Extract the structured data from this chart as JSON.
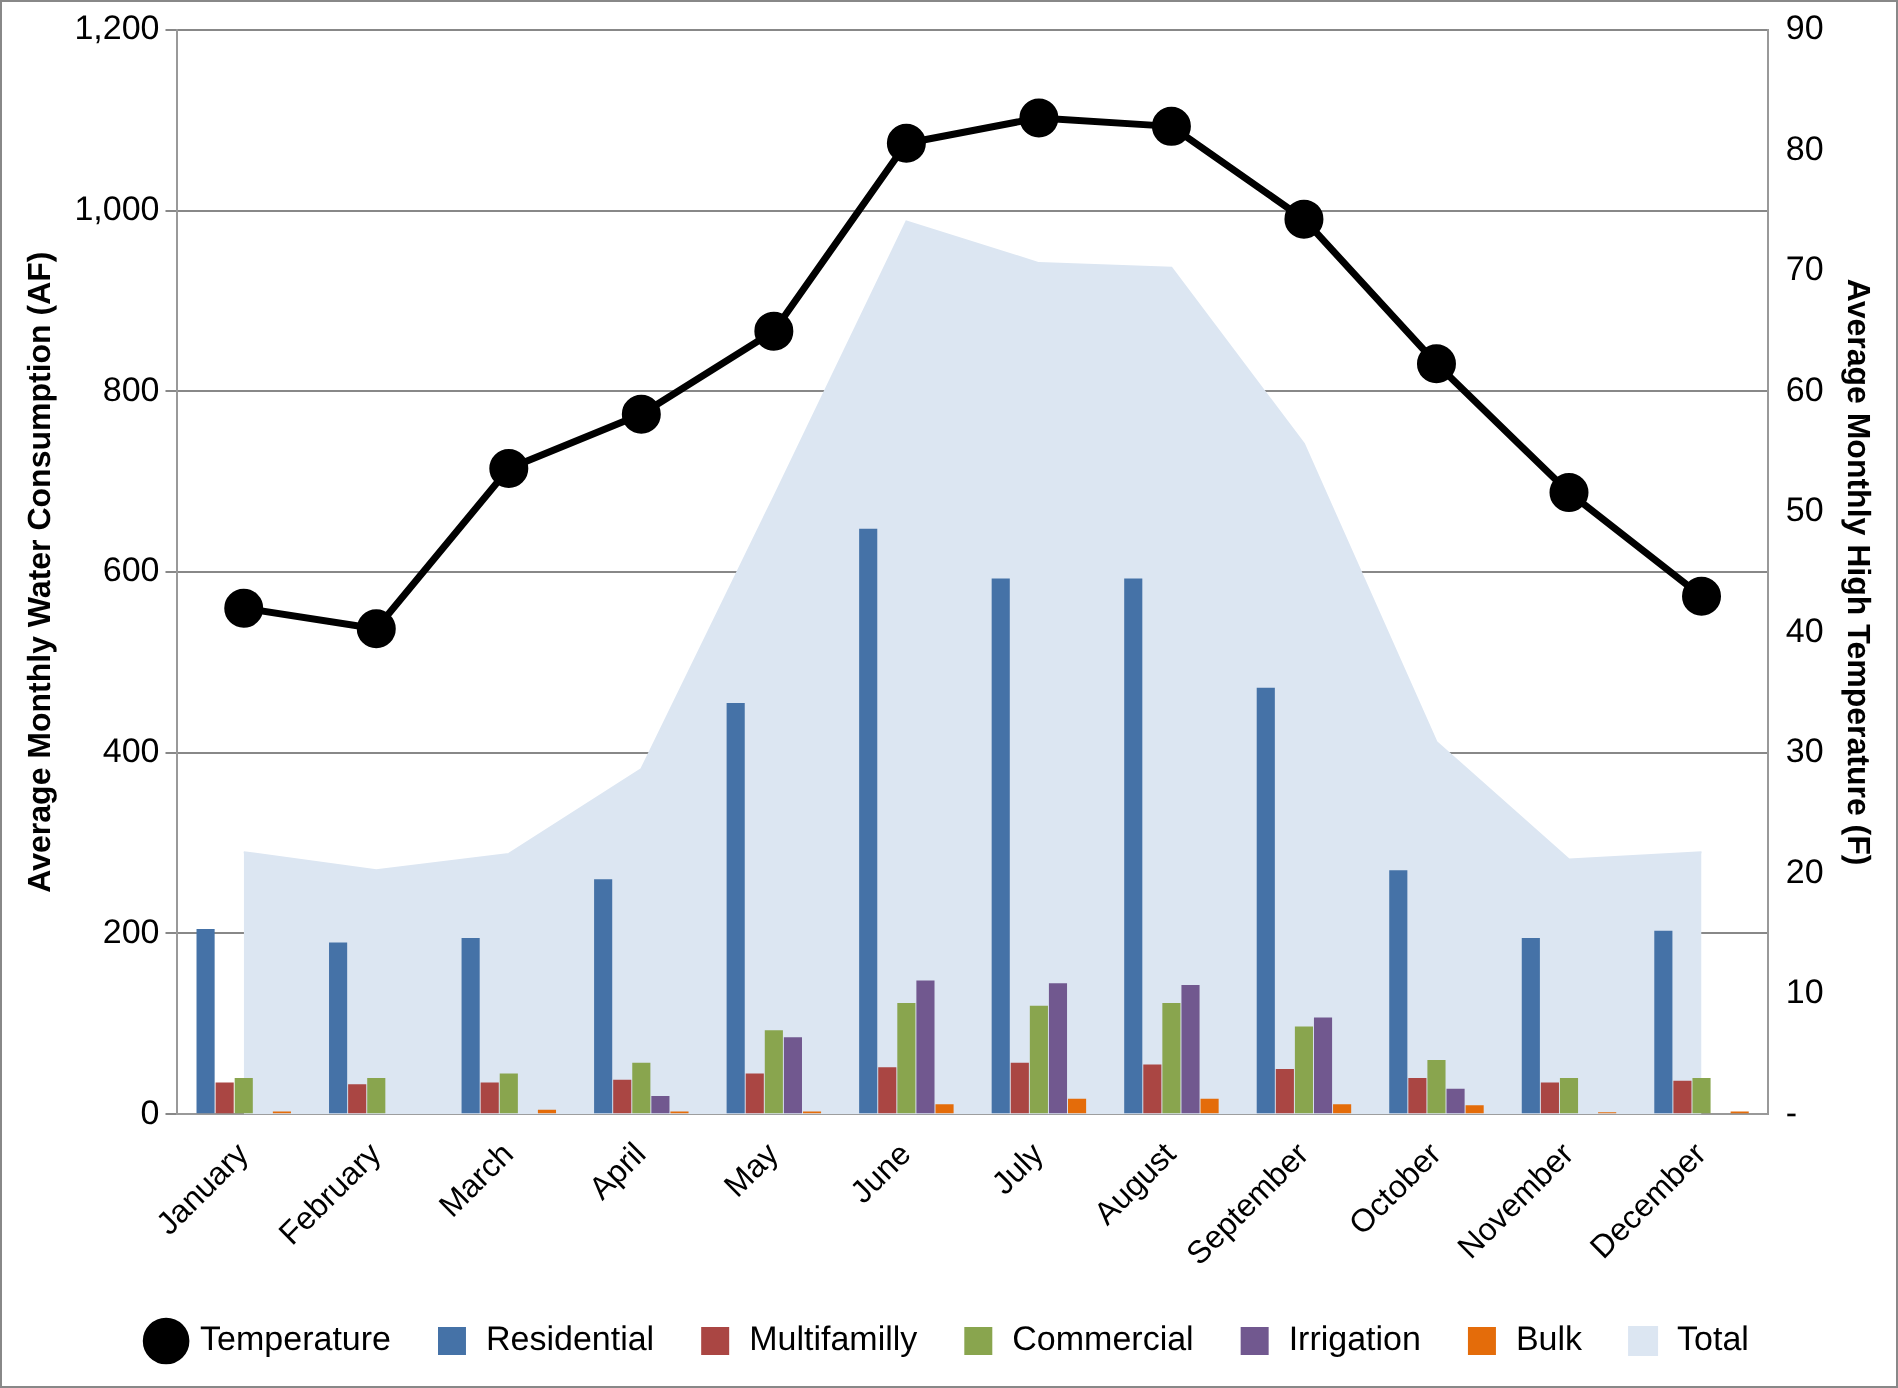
{
  "chart_data": {
    "type": "bar",
    "xlabel": null,
    "ylabel": "Average Monthly Water Consumption (AF)",
    "y2label": "Average Monthly High Temperature (F)",
    "categories": [
      "January",
      "February",
      "March",
      "April",
      "May",
      "June",
      "July",
      "August",
      "September",
      "October",
      "November",
      "December"
    ],
    "series": [
      {
        "name": "Total",
        "type": "area",
        "color": "#dce6f2",
        "values": [
          290,
          270,
          288,
          382,
          683,
          988,
          942,
          937,
          742,
          412,
          282,
          290
        ]
      },
      {
        "name": "Residential",
        "color": "#4572a7",
        "values": [
          205,
          190,
          195,
          260,
          455,
          648,
          593,
          593,
          472,
          270,
          195,
          203
        ]
      },
      {
        "name": "Multifamilly",
        "color": "#aa4643",
        "values": [
          35,
          33,
          35,
          38,
          45,
          52,
          57,
          55,
          50,
          40,
          35,
          37
        ]
      },
      {
        "name": "Commercial",
        "color": "#89a54e",
        "values": [
          40,
          40,
          45,
          57,
          93,
          123,
          120,
          123,
          97,
          60,
          40,
          40
        ]
      },
      {
        "name": "Irrigation",
        "color": "#71588f",
        "values": [
          0,
          0,
          0,
          20,
          85,
          148,
          145,
          143,
          107,
          28,
          0,
          0
        ]
      },
      {
        "name": "Bulk",
        "color": "#e46c0a",
        "values": [
          3,
          0,
          5,
          3,
          3,
          11,
          17,
          17,
          11,
          10,
          2,
          3
        ]
      },
      {
        "name": "Temperature",
        "type": "line",
        "axis": "y2",
        "color": "#000000",
        "marker": "circle",
        "values": [
          42,
          40.3,
          53.6,
          58.1,
          65,
          80.6,
          82.7,
          82,
          74.3,
          62.3,
          51.6,
          43
        ]
      }
    ],
    "ylim": [
      0,
      1200
    ],
    "yticks": [
      0,
      {
        "value": 200,
        "label": "200"
      },
      {
        "value": 400,
        "label": "400"
      },
      {
        "value": 600,
        "label": "600"
      },
      {
        "value": 800,
        "label": "800"
      },
      {
        "value": 1000,
        "label": "1,000"
      },
      {
        "value": 1200,
        "label": "1,200"
      }
    ],
    "y2lim": [
      0,
      90
    ],
    "y2ticks": [
      {
        "value": 0,
        "label": "-"
      },
      10,
      20,
      30,
      40,
      50,
      60,
      70,
      80,
      90
    ],
    "grid": "y",
    "legend": "bottom"
  }
}
